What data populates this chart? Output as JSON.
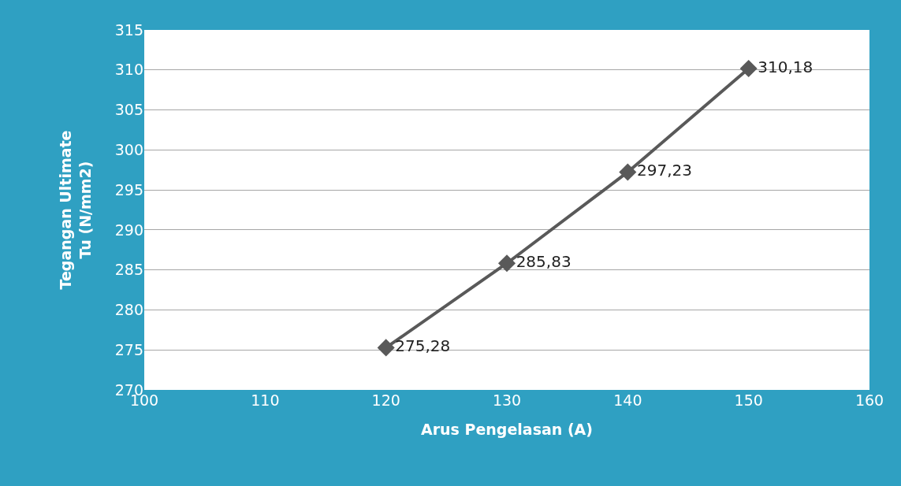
{
  "chart_data": {
    "type": "line",
    "xlabel": "Arus Pengelasan (A)",
    "ylabel": "Tegangan Ultimate\nTu (N/mm2)",
    "x": [
      120,
      130,
      140,
      150
    ],
    "series": [
      {
        "color": "#595959",
        "values": [
          275.28,
          285.83,
          297.23,
          310.18
        ],
        "value_labels": [
          "275,28",
          "285,83",
          "297,23",
          "310,18"
        ]
      }
    ],
    "xlim": [
      100,
      160
    ],
    "xticks": [
      100,
      110,
      120,
      130,
      140,
      150,
      160
    ],
    "ylim": [
      270,
      315
    ],
    "yticks": [
      270,
      275,
      280,
      285,
      290,
      295,
      300,
      305,
      310,
      315
    ],
    "grid": "y",
    "marker": "diamond",
    "line_style": "solid",
    "legend": false
  }
}
